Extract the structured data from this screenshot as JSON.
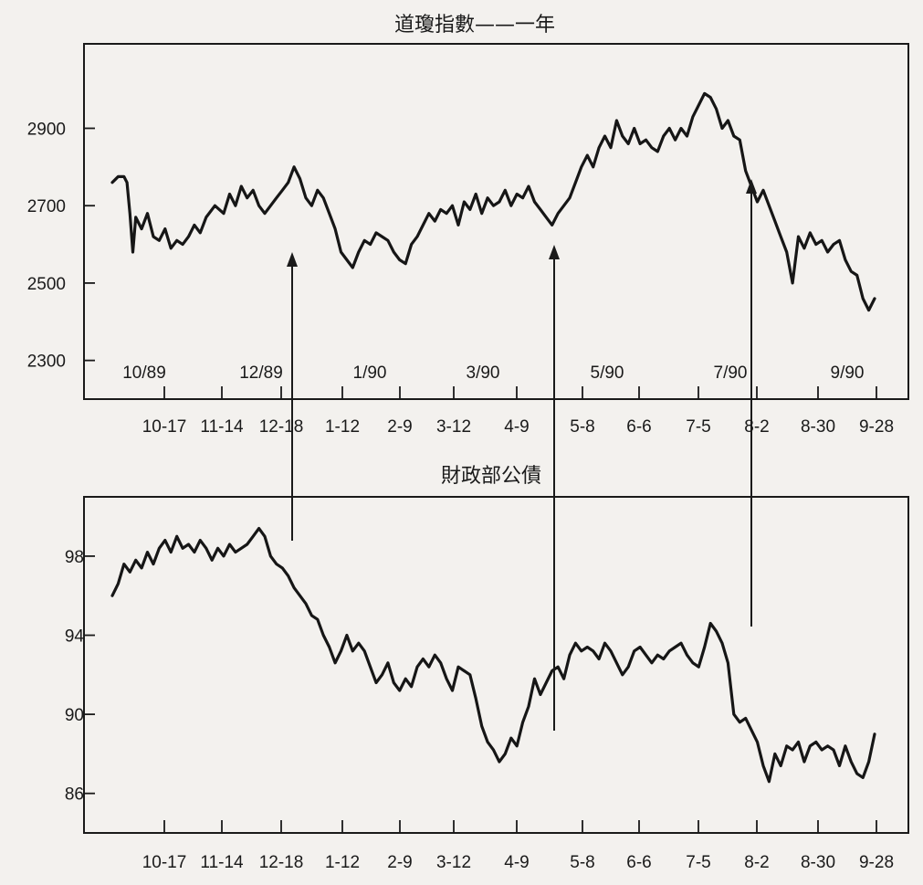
{
  "chart_data": [
    {
      "type": "line",
      "title": "道瓊指數——一年",
      "xlabel": "",
      "ylabel": "",
      "ylim": [
        2200,
        3090
      ],
      "yticks": [
        2300,
        2500,
        2700,
        2900
      ],
      "x_tick_labels": [
        "10-17",
        "11-14",
        "12-18",
        "1-12",
        "2-9",
        "3-12",
        "4-9",
        "5-8",
        "6-6",
        "7-5",
        "8-2",
        "8-30",
        "9-28"
      ],
      "period_labels": [
        "10/89",
        "12/89",
        "1/90",
        "3/90",
        "5/90",
        "7/90",
        "9/90"
      ],
      "series": [
        {
          "x": [
            0,
            2,
            4,
            5,
            6,
            7,
            8,
            10,
            12,
            14,
            16,
            18,
            20,
            22,
            24,
            26,
            28,
            30,
            32,
            35,
            38,
            40,
            42,
            44,
            46,
            48,
            50,
            52,
            54,
            56,
            58,
            60,
            62,
            64,
            66,
            68,
            70,
            72,
            74,
            76,
            78,
            80,
            82,
            84,
            86,
            88,
            90,
            92,
            94,
            96,
            98,
            100,
            102,
            104,
            106,
            108,
            110,
            112,
            114,
            116,
            118,
            120,
            122,
            124,
            126,
            128,
            130,
            132,
            134,
            136,
            138,
            140,
            142,
            144,
            146,
            148,
            150,
            152,
            154,
            156,
            158,
            160,
            162,
            164,
            166,
            168,
            170,
            172,
            174,
            176,
            178,
            180,
            182,
            184,
            186,
            188,
            190,
            192,
            194,
            196,
            198,
            200,
            202,
            204,
            206,
            208,
            210,
            212,
            214,
            216,
            218,
            220,
            222,
            224,
            226,
            228,
            230,
            232,
            234,
            236,
            238,
            240,
            242,
            244,
            246,
            248,
            250,
            252,
            254,
            256,
            258,
            260
          ],
          "values": [
            2760,
            2775,
            2775,
            2760,
            2680,
            2580,
            2670,
            2640,
            2680,
            2620,
            2610,
            2640,
            2590,
            2610,
            2600,
            2620,
            2650,
            2630,
            2670,
            2700,
            2680,
            2730,
            2700,
            2750,
            2720,
            2740,
            2700,
            2680,
            2700,
            2720,
            2740,
            2760,
            2800,
            2770,
            2720,
            2700,
            2740,
            2720,
            2680,
            2640,
            2580,
            2560,
            2540,
            2580,
            2610,
            2600,
            2630,
            2620,
            2610,
            2580,
            2560,
            2550,
            2600,
            2620,
            2650,
            2680,
            2660,
            2690,
            2680,
            2700,
            2650,
            2710,
            2690,
            2730,
            2680,
            2720,
            2700,
            2710,
            2740,
            2700,
            2730,
            2720,
            2750,
            2710,
            2690,
            2670,
            2650,
            2680,
            2700,
            2720,
            2760,
            2800,
            2830,
            2800,
            2850,
            2880,
            2850,
            2920,
            2880,
            2860,
            2900,
            2860,
            2870,
            2850,
            2840,
            2880,
            2900,
            2870,
            2900,
            2880,
            2930,
            2960,
            2990,
            2980,
            2950,
            2900,
            2920,
            2880,
            2870,
            2790,
            2750,
            2710,
            2740,
            2700,
            2660,
            2620,
            2580,
            2500,
            2620,
            2590,
            2630,
            2600,
            2610,
            2580,
            2600,
            2610,
            2560,
            2530,
            2520,
            2460,
            2430,
            2460
          ]
        }
      ]
    },
    {
      "type": "line",
      "title": "財政部公債",
      "xlabel": "",
      "ylabel": "",
      "ylim": [
        84,
        101
      ],
      "yticks": [
        86,
        90,
        94,
        98
      ],
      "x_tick_labels": [
        "10-17",
        "11-14",
        "12-18",
        "1-12",
        "2-9",
        "3-12",
        "4-9",
        "5-8",
        "6-6",
        "7-5",
        "8-2",
        "8-30",
        "9-28"
      ],
      "series": [
        {
          "x": [
            0,
            2,
            4,
            6,
            8,
            10,
            12,
            14,
            16,
            18,
            20,
            22,
            24,
            26,
            28,
            30,
            32,
            34,
            36,
            38,
            40,
            42,
            44,
            46,
            48,
            50,
            52,
            54,
            56,
            58,
            60,
            62,
            64,
            66,
            68,
            70,
            72,
            74,
            76,
            78,
            80,
            82,
            84,
            86,
            88,
            90,
            92,
            94,
            96,
            98,
            100,
            102,
            104,
            106,
            108,
            110,
            112,
            114,
            116,
            118,
            120,
            122,
            124,
            126,
            128,
            130,
            132,
            134,
            136,
            138,
            140,
            142,
            144,
            146,
            148,
            150,
            152,
            154,
            156,
            158,
            160,
            162,
            164,
            166,
            168,
            170,
            172,
            174,
            176,
            178,
            180,
            182,
            184,
            186,
            188,
            190,
            192,
            194,
            196,
            198,
            200,
            202,
            204,
            206,
            208,
            210,
            212,
            214,
            216,
            218,
            220,
            222,
            224,
            226,
            228,
            230,
            232,
            234,
            236,
            238,
            240,
            242,
            244,
            246,
            248,
            250,
            252,
            254,
            256,
            258,
            260
          ],
          "values": [
            96,
            96.6,
            97.6,
            97.2,
            97.8,
            97.4,
            98.2,
            97.6,
            98.4,
            98.8,
            98.2,
            99,
            98.4,
            98.6,
            98.2,
            98.8,
            98.4,
            97.8,
            98.4,
            98,
            98.6,
            98.2,
            98.4,
            98.6,
            99,
            99.4,
            99,
            98,
            97.6,
            97.4,
            97,
            96.4,
            96,
            95.6,
            95,
            94.8,
            94,
            93.4,
            92.6,
            93.2,
            94,
            93.2,
            93.6,
            93.2,
            92.4,
            91.6,
            92,
            92.6,
            91.6,
            91.2,
            91.8,
            91.4,
            92.4,
            92.8,
            92.4,
            93,
            92.6,
            91.8,
            91.2,
            92.4,
            92.2,
            92,
            90.8,
            89.4,
            88.6,
            88.2,
            87.6,
            88,
            88.8,
            88.4,
            89.6,
            90.4,
            91.8,
            91,
            91.6,
            92.2,
            92.4,
            91.8,
            93,
            93.6,
            93.2,
            93.4,
            93.2,
            92.8,
            93.6,
            93.2,
            92.6,
            92,
            92.4,
            93.2,
            93.4,
            93,
            92.6,
            93,
            92.8,
            93.2,
            93.4,
            93.6,
            93,
            92.6,
            92.4,
            93.4,
            94.6,
            94.2,
            93.6,
            92.6,
            90,
            89.6,
            89.8,
            89.2,
            88.6,
            87.4,
            86.6,
            88,
            87.4,
            88.4,
            88.2,
            88.6,
            87.6,
            88.4,
            88.6,
            88.2,
            88.4,
            88.2,
            87.4,
            88.4,
            87.6,
            87,
            86.8,
            87.6,
            89
          ]
        }
      ]
    }
  ]
}
